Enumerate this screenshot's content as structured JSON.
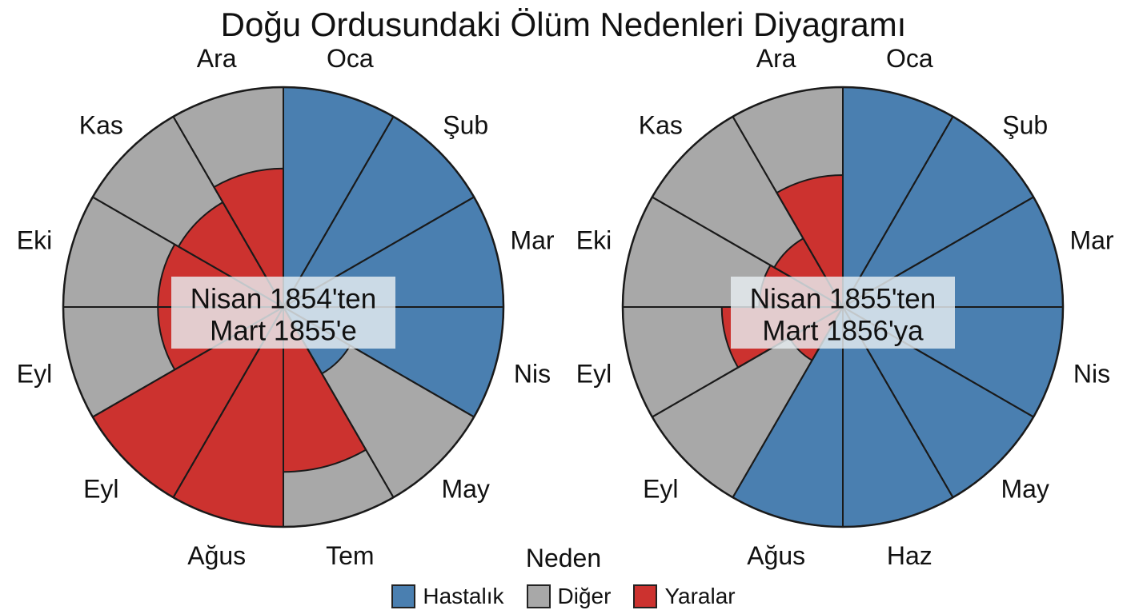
{
  "title": "Doğu Ordusundaki Ölüm Nedenleri Diyagramı",
  "legend": {
    "title": "Neden",
    "items": [
      {
        "label": "Hastalık",
        "color": "#4a7fb0"
      },
      {
        "label": "Diğer",
        "color": "#a8a8a8"
      },
      {
        "label": "Yaralar",
        "color": "#cc322f"
      }
    ]
  },
  "chart_data": [
    {
      "type": "polar-area",
      "center_label": [
        "Nisan 1854'ten",
        "Mart 1855'e"
      ],
      "months": [
        "Oca",
        "Şub",
        "Mar",
        "Nis",
        "May",
        "Tem",
        "Ağus",
        "Eyl",
        "Eyl",
        "Eki",
        "Kas",
        "Ara"
      ],
      "series": [
        {
          "name": "Hastalık",
          "values": [
            1.0,
            1.0,
            1.0,
            1.0,
            0.35,
            0,
            0,
            0,
            0,
            0,
            0,
            0
          ]
        },
        {
          "name": "Diğer",
          "values": [
            0,
            0,
            0,
            0,
            1.0,
            1.0,
            0,
            0,
            1.0,
            1.0,
            1.0,
            1.0
          ]
        },
        {
          "name": "Yaralar",
          "values": [
            0,
            0,
            0,
            0,
            0,
            0.75,
            1.0,
            1.0,
            0.57,
            0.57,
            0.55,
            0.63
          ]
        }
      ]
    },
    {
      "type": "polar-area",
      "center_label": [
        "Nisan 1855'ten",
        "Mart 1856'ya"
      ],
      "months": [
        "Oca",
        "Şub",
        "Mar",
        "Nis",
        "May",
        "Haz",
        "Ağus",
        "Eyl",
        "Eyl",
        "Eki",
        "Kas",
        "Ara"
      ],
      "series": [
        {
          "name": "Hastalık",
          "values": [
            1.0,
            1.0,
            1.0,
            1.0,
            1.0,
            1.0,
            1.0,
            0,
            0,
            0,
            0,
            0
          ]
        },
        {
          "name": "Diğer",
          "values": [
            0,
            0,
            0,
            0,
            0,
            0,
            0,
            1.0,
            1.0,
            1.0,
            1.0,
            1.0
          ]
        },
        {
          "name": "Yaralar",
          "values": [
            0,
            0,
            0,
            0,
            0,
            0,
            0,
            0.28,
            0.55,
            0.38,
            0.36,
            0.6
          ]
        }
      ]
    }
  ]
}
